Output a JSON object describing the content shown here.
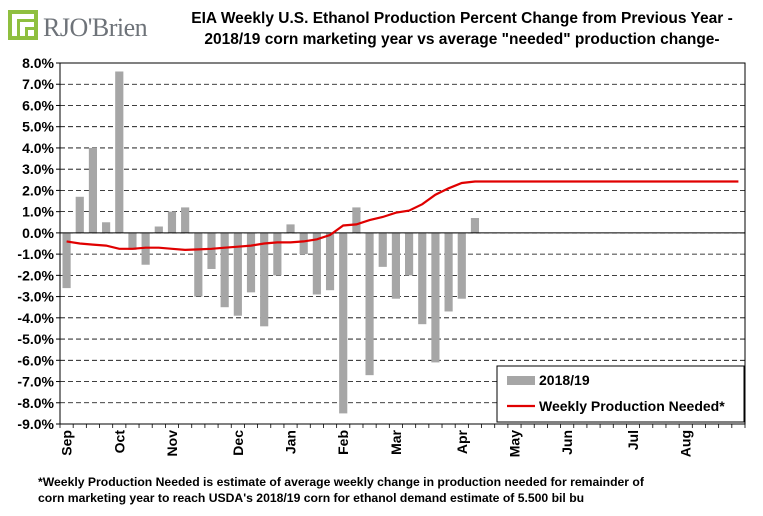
{
  "logo": {
    "text": "RJO'Brien"
  },
  "title": {
    "line1": "EIA Weekly U.S. Ethanol Production Percent Change from Previous Year -",
    "line2": "2018/19 corn marketing year vs average \"needed\" production change-"
  },
  "footnote": {
    "line1": "*Weekly Production Needed is estimate of average weekly change in production needed for remainder of",
    "line2": "corn marketing year to reach USDA's 2018/19 corn for ethanol demand estimate of 5.500 bil bu"
  },
  "colors": {
    "bars": "#a6a6a6",
    "line": "#e00000",
    "grid": "#000000"
  },
  "chart_data": {
    "type": "bar",
    "title": "EIA Weekly U.S. Ethanol Production Percent Change from Previous Year - 2018/19 corn marketing year vs average \"needed\" production change-",
    "xlabel": "",
    "ylabel": "",
    "ylim": [
      -9.0,
      8.0
    ],
    "yticks": [
      "8.0%",
      "7.0%",
      "6.0%",
      "5.0%",
      "4.0%",
      "3.0%",
      "2.0%",
      "1.0%",
      "0.0%",
      "-1.0%",
      "-2.0%",
      "-3.0%",
      "-4.0%",
      "-5.0%",
      "-6.0%",
      "-7.0%",
      "-8.0%",
      "-9.0%"
    ],
    "ytick_values": [
      8,
      7,
      6,
      5,
      4,
      3,
      2,
      1,
      0,
      -1,
      -2,
      -3,
      -4,
      -5,
      -6,
      -7,
      -8,
      -9
    ],
    "grid": true,
    "legend_position": "bottom-right",
    "num_weeks": 52,
    "month_labels": [
      {
        "label": "Sep",
        "week": 0
      },
      {
        "label": "Oct",
        "week": 4
      },
      {
        "label": "Nov",
        "week": 8
      },
      {
        "label": "Dec",
        "week": 13
      },
      {
        "label": "Jan",
        "week": 17
      },
      {
        "label": "Feb",
        "week": 21
      },
      {
        "label": "Mar",
        "week": 25
      },
      {
        "label": "Apr",
        "week": 30
      },
      {
        "label": "May",
        "week": 34
      },
      {
        "label": "Jun",
        "week": 38
      },
      {
        "label": "Jul",
        "week": 43
      },
      {
        "label": "Aug",
        "week": 47
      }
    ],
    "series": [
      {
        "name": "2018/19",
        "kind": "bar",
        "values": [
          -2.6,
          1.7,
          4.0,
          0.5,
          7.6,
          -0.8,
          -1.5,
          0.3,
          1.0,
          1.2,
          -3.0,
          -1.7,
          -3.5,
          -3.9,
          -2.8,
          -4.4,
          -2.0,
          0.4,
          -1.0,
          -2.9,
          -2.7,
          -8.5,
          1.2,
          -6.7,
          -1.6,
          -3.1,
          -2.0,
          -4.3,
          -6.1,
          -3.7,
          -3.1,
          0.7
        ]
      },
      {
        "name": "Weekly Production Needed*",
        "kind": "line",
        "values": [
          -0.4,
          -0.5,
          -0.55,
          -0.6,
          -0.75,
          -0.75,
          -0.7,
          -0.7,
          -0.75,
          -0.8,
          -0.78,
          -0.75,
          -0.7,
          -0.65,
          -0.6,
          -0.5,
          -0.45,
          -0.45,
          -0.4,
          -0.3,
          -0.1,
          0.35,
          0.4,
          0.6,
          0.75,
          0.95,
          1.05,
          1.35,
          1.8,
          2.1,
          2.35,
          2.42,
          2.42,
          2.42,
          2.42,
          2.42,
          2.42,
          2.42,
          2.42,
          2.42,
          2.42,
          2.42,
          2.42,
          2.42,
          2.42,
          2.42,
          2.42,
          2.42,
          2.42,
          2.42,
          2.42,
          2.42
        ]
      }
    ]
  }
}
